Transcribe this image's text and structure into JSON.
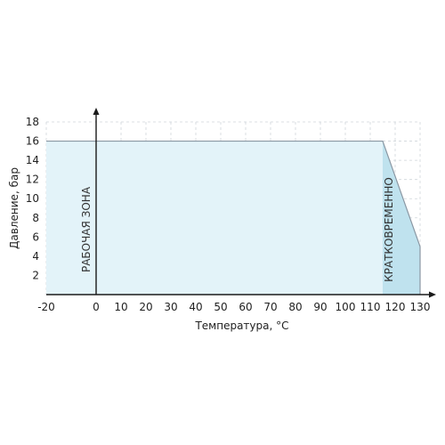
{
  "chart_data": {
    "type": "area",
    "xlabel": "Температура, °C",
    "ylabel": "Давление, бар",
    "xlim": [
      -20,
      130
    ],
    "ylim": [
      0,
      18
    ],
    "x_ticks": [
      -20,
      0,
      10,
      20,
      30,
      40,
      50,
      60,
      70,
      80,
      90,
      100,
      110,
      120,
      130
    ],
    "y_ticks": [
      2,
      4,
      6,
      8,
      10,
      12,
      14,
      16,
      18
    ],
    "grid": true,
    "grid_style": "dashed",
    "series": [
      {
        "x": [
          -20,
          115,
          130,
          130
        ],
        "y": [
          16,
          16,
          5,
          0
        ]
      }
    ],
    "regions": [
      {
        "label": "РАБОЧАЯ ЗОНА",
        "x_range": [
          -20,
          115
        ],
        "color": "#e3f3f9"
      },
      {
        "label": "КРАТКОВРЕМЕННО",
        "x_range": [
          115,
          130
        ],
        "color": "#bfe2ee"
      }
    ],
    "line_color": "#8a97a3",
    "axis_color": "#1a1a1a"
  }
}
